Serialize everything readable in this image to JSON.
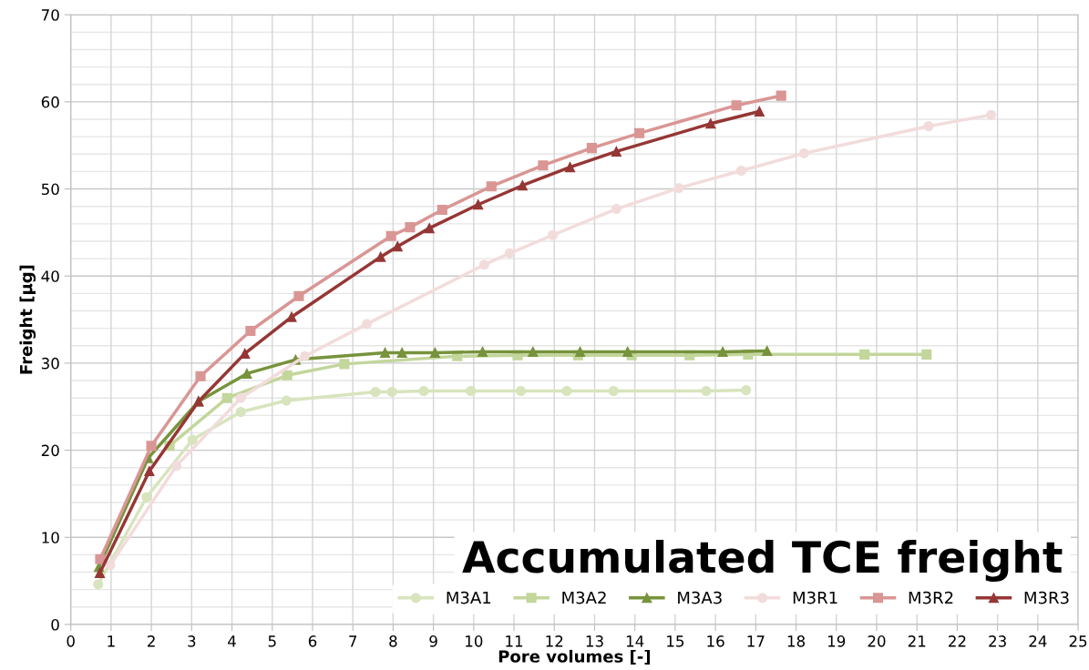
{
  "chart_data": {
    "type": "line",
    "title": "Accumulated TCE freight",
    "xlabel": "Pore volumes [-]",
    "ylabel": "Freight [µg]",
    "xlim": [
      0,
      25
    ],
    "xticks": [
      0,
      1,
      2,
      3,
      4,
      5,
      6,
      7,
      8,
      9,
      10,
      11,
      12,
      13,
      14,
      15,
      16,
      17,
      18,
      19,
      20,
      21,
      22,
      23,
      24,
      25
    ],
    "ylim": [
      0,
      70
    ],
    "yticks": [
      0,
      10,
      20,
      30,
      40,
      50,
      60,
      70
    ],
    "grid": true,
    "legend": "bottom right",
    "line_style": "solid",
    "series": [
      {
        "name": "M3A1",
        "color": "#d7e4bd",
        "marker": "circle",
        "x": [
          0.68,
          1.88,
          3.02,
          4.22,
          5.35,
          7.56,
          7.97,
          8.76,
          9.93,
          11.17,
          12.31,
          13.47,
          15.77,
          16.76
        ],
        "values": [
          4.6,
          14.6,
          21.2,
          24.4,
          25.7,
          26.7,
          26.7,
          26.8,
          26.8,
          26.8,
          26.8,
          26.8,
          26.8,
          26.9
        ]
      },
      {
        "name": "M3A2",
        "color": "#c3d69b",
        "marker": "square",
        "x": [
          2.45,
          3.88,
          5.37,
          6.79,
          9.59,
          11.09,
          12.59,
          13.92,
          15.36,
          16.81,
          19.7,
          21.24
        ],
        "values": [
          20.5,
          26.0,
          28.6,
          29.9,
          30.8,
          30.9,
          30.9,
          30.9,
          30.9,
          31.0,
          31.0,
          31.0
        ]
      },
      {
        "name": "M3A3",
        "color": "#77933c",
        "marker": "triangle",
        "x": [
          0.7,
          1.92,
          3.17,
          4.37,
          5.58,
          7.8,
          8.22,
          9.04,
          10.22,
          11.47,
          12.64,
          13.82,
          16.18,
          17.28
        ],
        "values": [
          6.6,
          19.1,
          25.6,
          28.8,
          30.4,
          31.2,
          31.2,
          31.2,
          31.3,
          31.3,
          31.3,
          31.3,
          31.3,
          31.4
        ]
      },
      {
        "name": "M3R1",
        "color": "#f2dcdb",
        "marker": "circle",
        "x": [
          0.98,
          2.62,
          4.22,
          5.81,
          7.35,
          10.26,
          10.89,
          11.96,
          13.54,
          15.09,
          16.64,
          18.2,
          21.29,
          22.84
        ],
        "values": [
          6.8,
          18.2,
          26.0,
          30.8,
          34.5,
          41.3,
          42.6,
          44.7,
          47.7,
          50.1,
          52.1,
          54.1,
          57.2,
          58.5
        ]
      },
      {
        "name": "M3R2",
        "color": "#d99694",
        "marker": "square",
        "x": [
          0.73,
          2.0,
          3.22,
          4.46,
          5.66,
          7.95,
          8.42,
          9.22,
          10.44,
          11.72,
          12.93,
          14.11,
          16.52,
          17.63
        ],
        "values": [
          7.5,
          20.5,
          28.5,
          33.7,
          37.7,
          44.6,
          45.6,
          47.6,
          50.3,
          52.7,
          54.7,
          56.4,
          59.6,
          60.7
        ]
      },
      {
        "name": "M3R3",
        "color": "#953735",
        "marker": "triangle",
        "x": [
          0.72,
          1.95,
          3.17,
          4.32,
          5.48,
          7.69,
          8.11,
          8.9,
          10.11,
          11.21,
          12.39,
          13.54,
          15.88,
          17.09
        ],
        "values": [
          5.9,
          17.6,
          25.6,
          31.1,
          35.3,
          42.2,
          43.4,
          45.5,
          48.2,
          50.4,
          52.5,
          54.3,
          57.5,
          58.9
        ]
      }
    ]
  }
}
